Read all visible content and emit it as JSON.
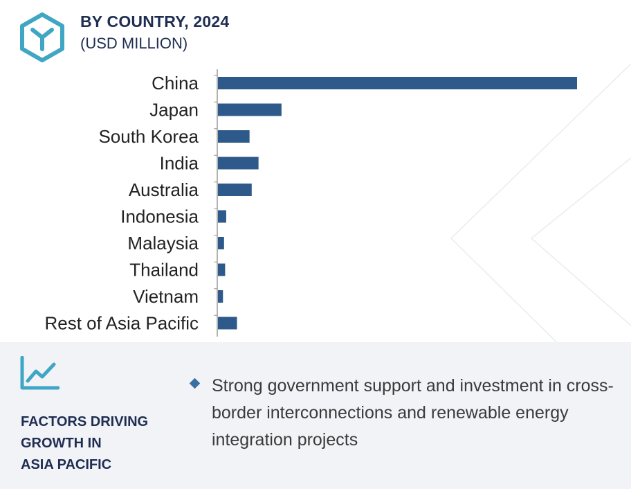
{
  "header": {
    "title": "BY COUNTRY, 2024",
    "subtitle": "(USD MILLION)",
    "logo_icon": "hexagon-y-logo-icon"
  },
  "colors": {
    "bar": "#2d5a8a",
    "title": "#1e2d52",
    "accent": "#3fa6c4",
    "panel_bg": "#f2f3f7"
  },
  "chart_data": {
    "type": "bar",
    "orientation": "horizontal",
    "title": "BY COUNTRY, 2024",
    "subtitle": "(USD MILLION)",
    "categories": [
      "China",
      "Japan",
      "South Korea",
      "India",
      "Australia",
      "Indonesia",
      "Malaysia",
      "Thailand",
      "Vietnam",
      "Rest of Asia Pacific"
    ],
    "values": [
      100,
      17.7,
      8.8,
      11.3,
      9.4,
      2.3,
      1.7,
      2.0,
      1.4,
      5.3
    ],
    "xlabel": "",
    "ylabel": "",
    "xlim": [
      0,
      100
    ],
    "grid": false,
    "legend": "none"
  },
  "factors": {
    "icon": "growth-chart-icon",
    "title": "FACTORS DRIVING\nGROWTH IN\nASIA PACIFIC",
    "items": [
      "Strong government support and investment in cross-border interconnections and renewable energy integration projects"
    ]
  }
}
